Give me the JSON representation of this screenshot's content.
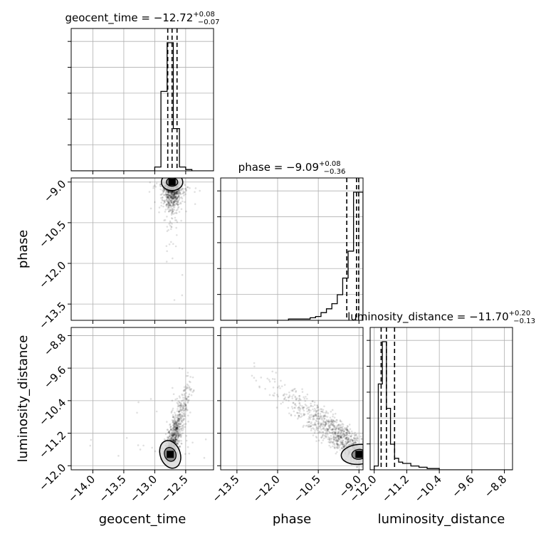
{
  "chart_data": {
    "type": "scatter",
    "subtype": "corner-plot",
    "parameters": [
      "geocent_time",
      "phase",
      "luminosity_distance"
    ],
    "titles": [
      {
        "main": "geocent_time = −12.72",
        "sup": "+0.08",
        "sub": "−0.07"
      },
      {
        "main": "phase = −9.09",
        "sup": "+0.08",
        "sub": "−0.36"
      },
      {
        "main": "luminosity_distance = −11.70",
        "sup": "+0.20",
        "sub": "−0.13"
      }
    ],
    "ranges": {
      "geocent_time": [
        -14.35,
        -12.05
      ],
      "phase": [
        -14.1,
        -8.85
      ],
      "luminosity_distance": [
        -12.1,
        -8.6
      ]
    },
    "ticks": {
      "geocent_time": {
        "values": [
          -14.0,
          -13.5,
          -13.0,
          -12.5
        ],
        "labels": [
          "−14.0",
          "−13.5",
          "−13.0",
          "−12.5"
        ]
      },
      "phase": {
        "values": [
          -13.5,
          -12.0,
          -10.5,
          -9.0
        ],
        "labels": [
          "−13.5",
          "−12.0",
          "−10.5",
          "−9.0"
        ]
      },
      "luminosity_distance": {
        "values": [
          -12.0,
          -11.2,
          -10.4,
          -9.6,
          -8.8
        ],
        "labels": [
          "−12.0",
          "−11.2",
          "−10.4",
          "−9.6",
          "−8.8"
        ]
      }
    },
    "quantiles": {
      "geocent_time": [
        -12.79,
        -12.72,
        -12.64
      ],
      "phase": [
        -9.45,
        -9.09,
        -9.01
      ],
      "luminosity_distance": [
        -11.83,
        -11.7,
        -11.5
      ]
    },
    "histograms": {
      "geocent_time": {
        "edges": [
          -13.0,
          -12.9,
          -12.8,
          -12.7,
          -12.6,
          -12.5,
          -12.4
        ],
        "counts": [
          3,
          62,
          100,
          33,
          3,
          1
        ]
      },
      "phase": {
        "edges": [
          -11.6,
          -11.2,
          -10.8,
          -10.6,
          -10.4,
          -10.2,
          -10.0,
          -9.8,
          -9.6,
          -9.4,
          -9.2,
          -9.0,
          -8.85
        ],
        "counts": [
          1,
          1,
          2,
          3,
          6,
          9,
          13,
          20,
          33,
          54,
          100,
          100
        ]
      },
      "luminosity_distance": {
        "edges": [
          -12.0,
          -11.9,
          -11.8,
          -11.7,
          -11.6,
          -11.5,
          -11.4,
          -11.3,
          -11.1,
          -10.9,
          -10.7,
          -10.4
        ],
        "counts": [
          3,
          67,
          100,
          48,
          20,
          9,
          6,
          5,
          3,
          2,
          1
        ]
      }
    },
    "grid": true
  },
  "axis_labels": {
    "geocent_time": "geocent_time",
    "phase": "phase",
    "luminosity_distance": "luminosity_distance"
  },
  "style": {
    "line_color": "#000000",
    "grid_color": "#b0b0b0",
    "point_color": "#000000"
  }
}
